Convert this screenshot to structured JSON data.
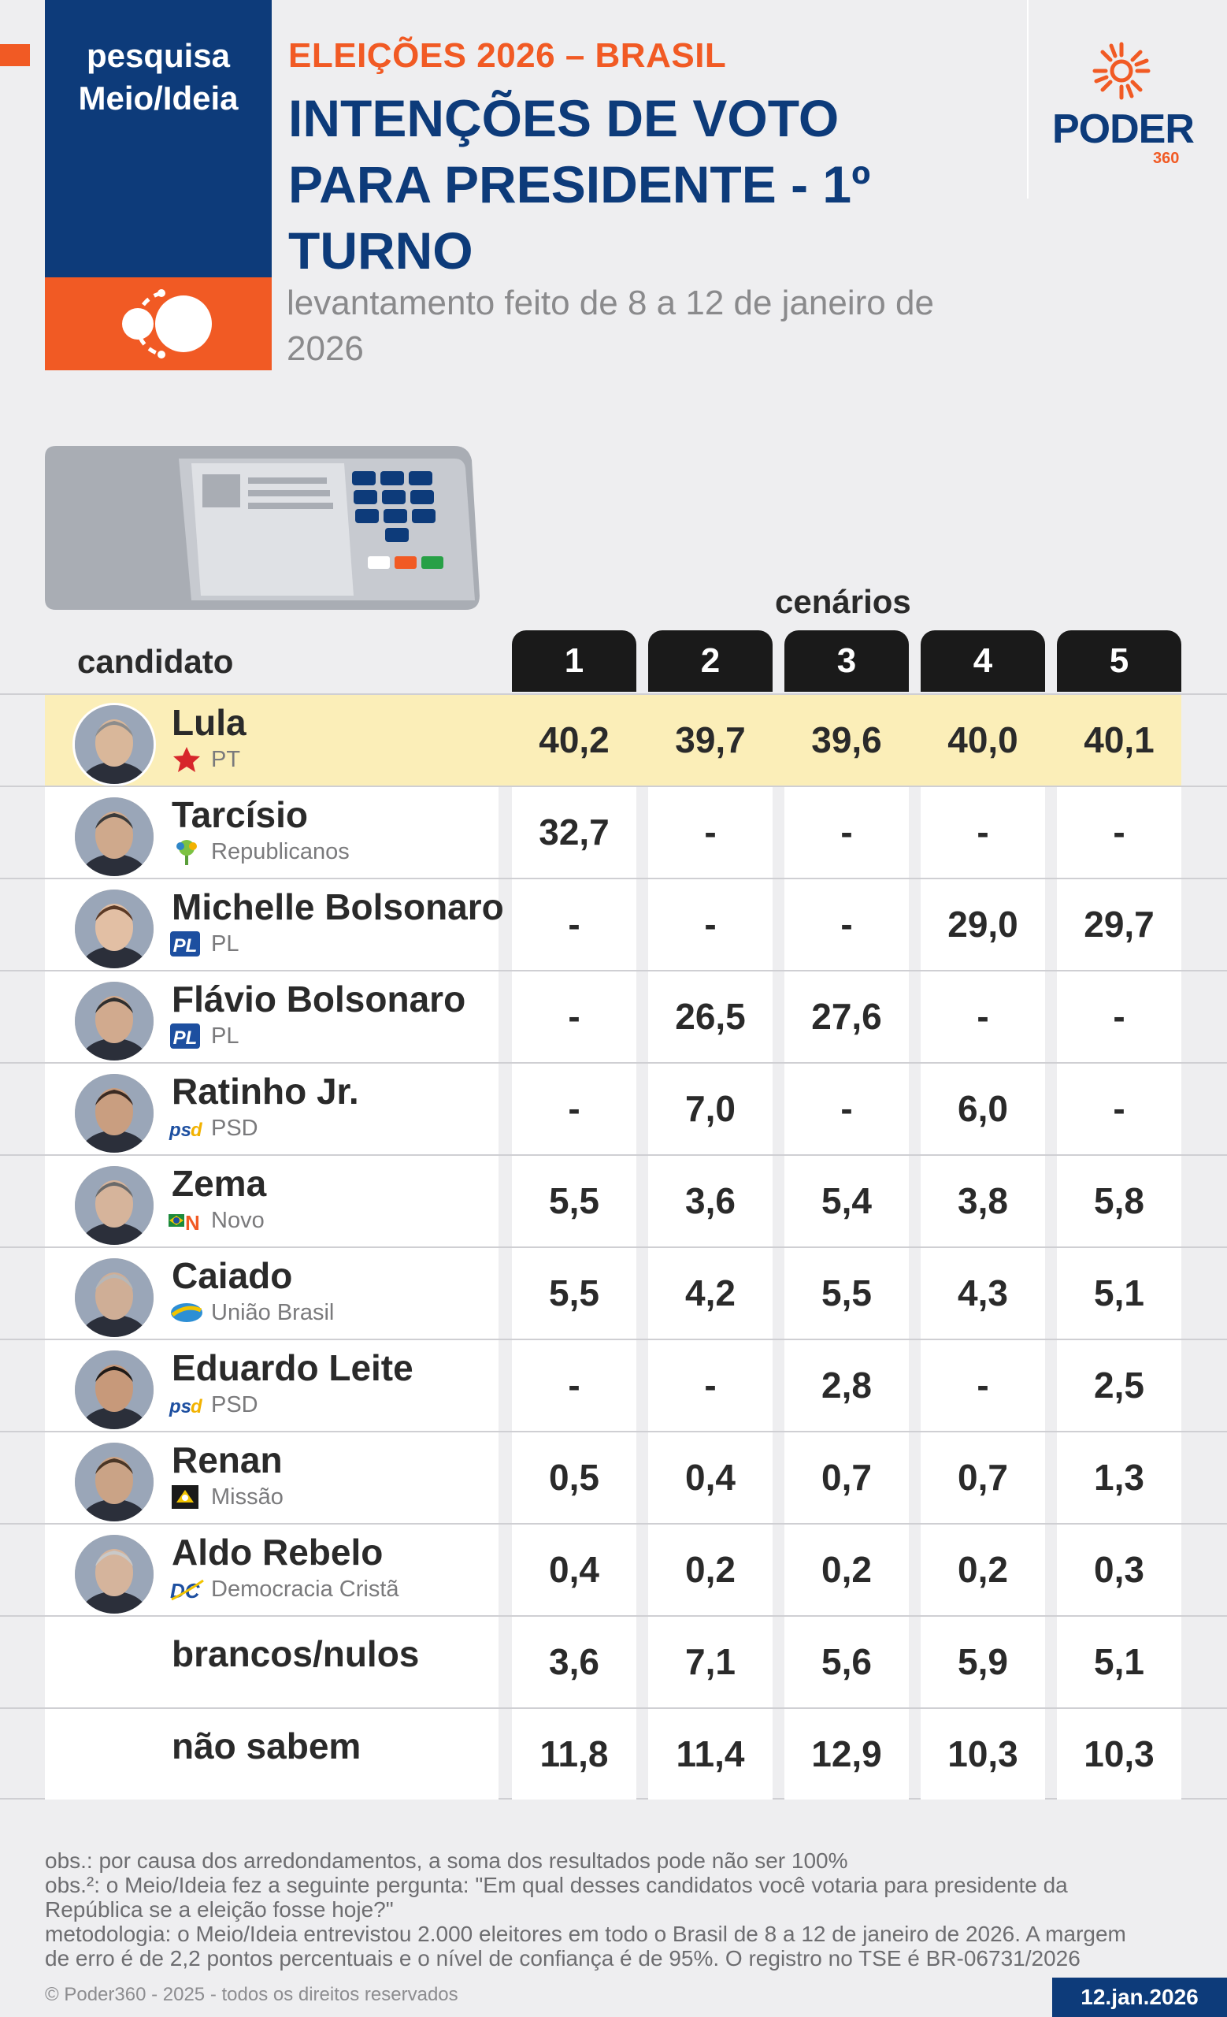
{
  "brand": {
    "line1": "pesquisa",
    "line2": "Meio/Ideia"
  },
  "header": {
    "kicker": "ELEIÇÕES 2026 – BRASIL",
    "title_line1": "INTENÇÕES DE VOTO",
    "title_line2": "PARA PRESIDENTE - 1º",
    "title_line3": "TURNO",
    "subtitle_line1": "levantamento feito de 8 a 12 de janeiro de",
    "subtitle_line2": "2026"
  },
  "logo": {
    "word": "PODER",
    "number": "360"
  },
  "table": {
    "scenarios_label": "cenários",
    "candidate_label": "candidato",
    "scenarios": [
      "1",
      "2",
      "3",
      "4",
      "5"
    ],
    "rows": [
      {
        "name": "Lula",
        "party": "PT",
        "party_icon": "pt-star-icon",
        "values": [
          "40,2",
          "39,7",
          "39,6",
          "40,0",
          "40,1"
        ],
        "highlight": true
      },
      {
        "name": "Tarcísio",
        "party": "Republicanos",
        "party_icon": "republicanos-tree-icon",
        "values": [
          "32,7",
          "-",
          "-",
          "-",
          "-"
        ]
      },
      {
        "name": "Michelle Bolsonaro",
        "party": "PL",
        "party_icon": "pl-badge-icon",
        "values": [
          "-",
          "-",
          "-",
          "29,0",
          "29,7"
        ]
      },
      {
        "name": "Flávio Bolsonaro",
        "party": "PL",
        "party_icon": "pl-badge-icon",
        "values": [
          "-",
          "26,5",
          "27,6",
          "-",
          "-"
        ]
      },
      {
        "name": "Ratinho Jr.",
        "party": "PSD",
        "party_icon": "psd-logo-icon",
        "values": [
          "-",
          "7,0",
          "-",
          "6,0",
          "-"
        ]
      },
      {
        "name": "Zema",
        "party": "Novo",
        "party_icon": "novo-logo-icon",
        "values": [
          "5,5",
          "3,6",
          "5,4",
          "3,8",
          "5,8"
        ]
      },
      {
        "name": "Caiado",
        "party": "União Brasil",
        "party_icon": "uniao-brasil-icon",
        "values": [
          "5,5",
          "4,2",
          "5,5",
          "4,3",
          "5,1"
        ]
      },
      {
        "name": "Eduardo Leite",
        "party": "PSD",
        "party_icon": "psd-logo-icon",
        "values": [
          "-",
          "-",
          "2,8",
          "-",
          "2,5"
        ]
      },
      {
        "name": "Renan",
        "party": "Missão",
        "party_icon": "missao-logo-icon",
        "values": [
          "0,5",
          "0,4",
          "0,7",
          "0,7",
          "1,3"
        ]
      },
      {
        "name": "Aldo Rebelo",
        "party": "Democracia Cristã",
        "party_icon": "dc-logo-icon",
        "values": [
          "0,4",
          "0,2",
          "0,2",
          "0,2",
          "0,3"
        ]
      },
      {
        "name": "brancos/nulos",
        "party": "",
        "values": [
          "3,6",
          "7,1",
          "5,6",
          "5,9",
          "5,1"
        ]
      },
      {
        "name": "não sabem",
        "party": "",
        "values": [
          "11,8",
          "11,4",
          "12,9",
          "10,3",
          "10,3"
        ]
      }
    ]
  },
  "footer": {
    "note1": "obs.: por causa dos arredondamentos, a soma dos resultados pode não ser 100%",
    "note2_line1": "obs.²: o Meio/Ideia fez a seguinte pergunta: \"Em qual desses candidatos você votaria para presidente da",
    "note2_line2": "República se a eleição fosse hoje?\"",
    "note3_line1": "metodologia: o Meio/Ideia entrevistou 2.000 eleitores em todo o Brasil de 8 a 12 de janeiro de 2026. A margem",
    "note3_line2": "de erro é de 2,2 pontos percentuais e o nível de confiança é de 95%. O registro no TSE é BR-06731/2026",
    "copyright": "© Poder360 - 2025 - todos os direitos reservados",
    "date": "12.jan.2026"
  },
  "colors": {
    "navy": "#0d3b7a",
    "orange": "#f15a24",
    "highlight": "#fbeeb8",
    "tab": "#1a1a1a"
  }
}
